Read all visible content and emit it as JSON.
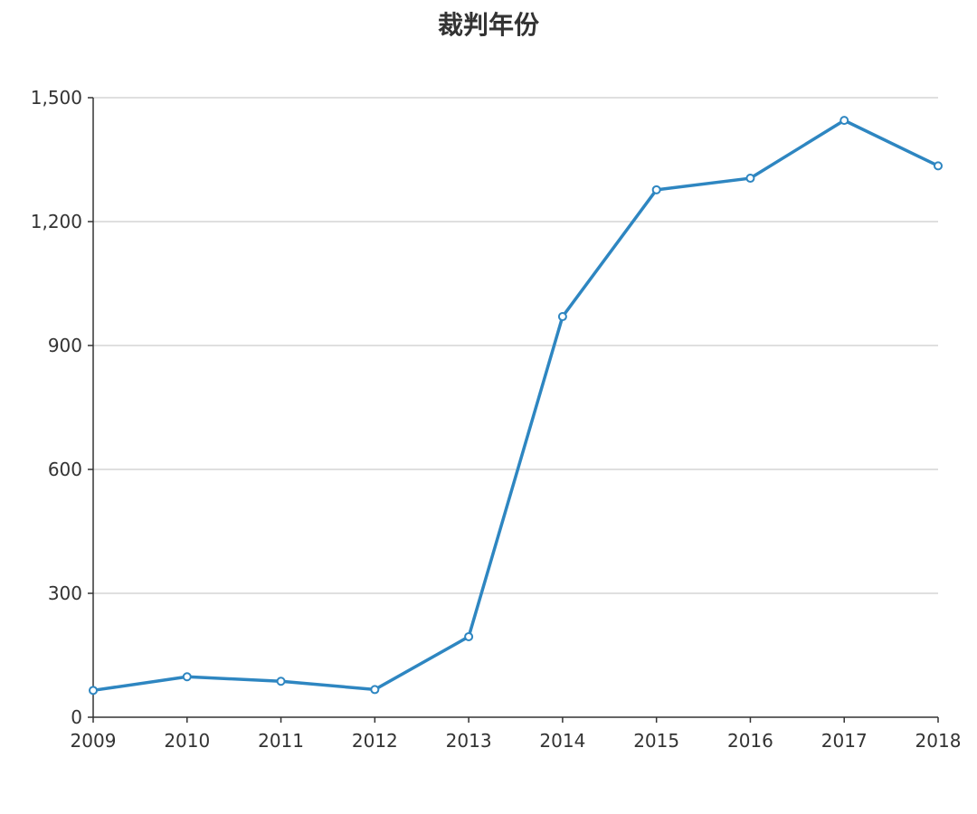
{
  "chart_data": {
    "type": "line",
    "title": "裁判年份",
    "xlabel": "",
    "ylabel": "",
    "categories": [
      "2009",
      "2010",
      "2011",
      "2012",
      "2013",
      "2014",
      "2015",
      "2016",
      "2017",
      "2018"
    ],
    "series": [
      {
        "values": [
          65,
          98,
          87,
          67,
          195,
          970,
          1277,
          1305,
          1445,
          1335
        ],
        "color": "#2e86c1"
      }
    ],
    "ylim": [
      0,
      1500
    ],
    "yticks": [
      0,
      300,
      600,
      900,
      1200,
      1500
    ],
    "ytick_labels": [
      "0",
      "300",
      "600",
      "900",
      "1,200",
      "1,500"
    ],
    "grid": true,
    "legend": "none"
  }
}
